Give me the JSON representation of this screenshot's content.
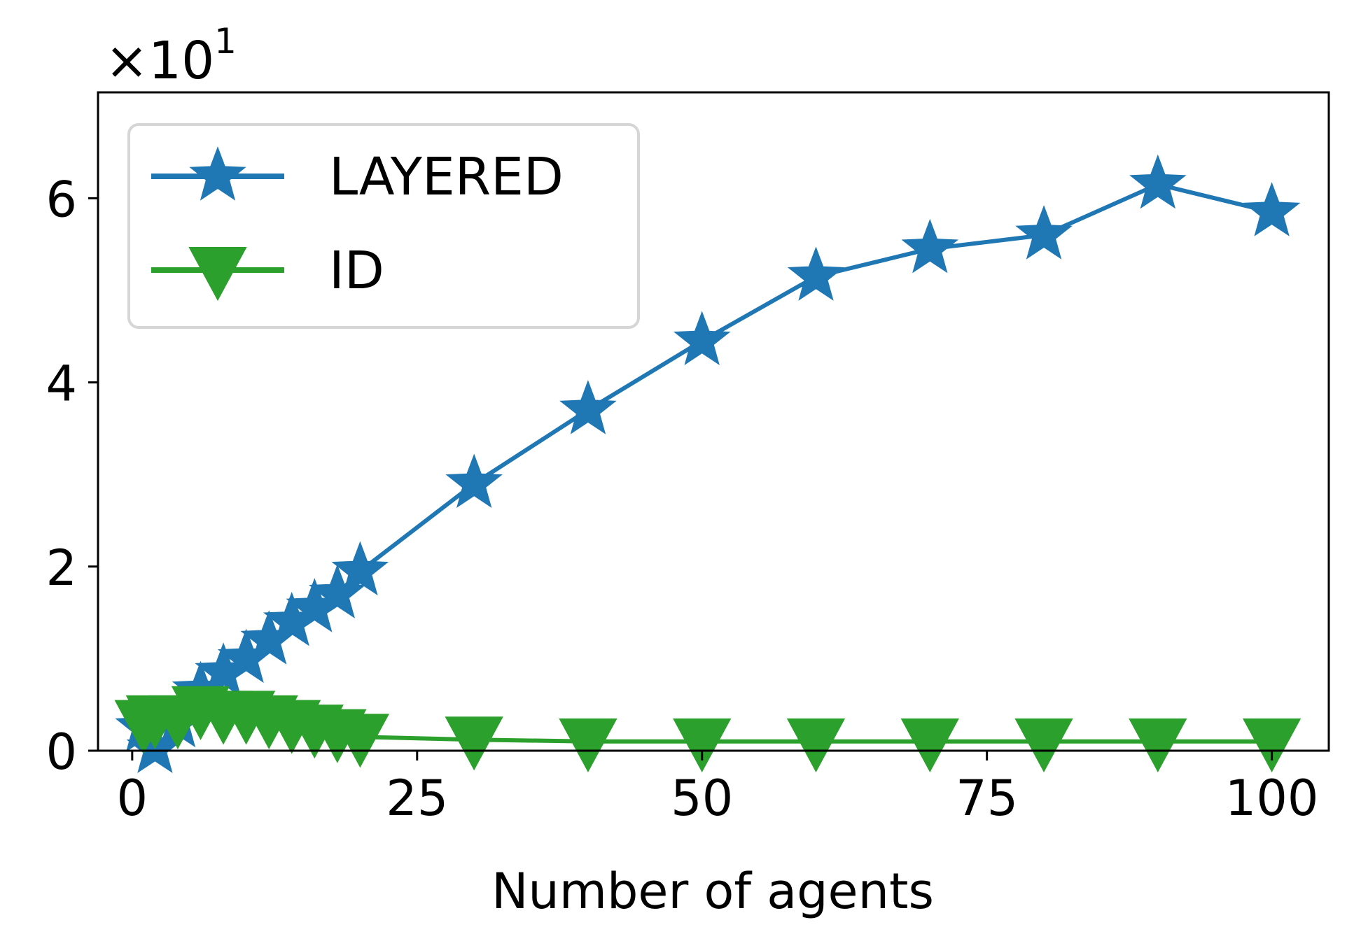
{
  "chart_data": {
    "type": "line",
    "xlabel": "Number of agents",
    "ylabel": "",
    "y_offset_label": "×10",
    "y_offset_exponent": "1",
    "xlim": [
      -3,
      105
    ],
    "ylim": [
      0,
      7.15
    ],
    "x_ticks": [
      0,
      25,
      50,
      75,
      100
    ],
    "y_ticks": [
      0,
      2,
      4,
      6
    ],
    "legend_position": "top-left",
    "grid": false,
    "series": [
      {
        "name": "LAYERED",
        "color": "#1f77b4",
        "marker": "star",
        "x": [
          1,
          2,
          4,
          6,
          8,
          10,
          12,
          14,
          16,
          18,
          20,
          30,
          40,
          50,
          60,
          70,
          80,
          90,
          100
        ],
        "y": [
          0.25,
          0.02,
          0.3,
          0.65,
          0.85,
          1.0,
          1.2,
          1.4,
          1.55,
          1.7,
          1.95,
          2.9,
          3.7,
          4.45,
          5.15,
          5.45,
          5.6,
          6.15,
          5.85
        ]
      },
      {
        "name": "ID",
        "color": "#2ca02c",
        "marker": "triangle-down",
        "x": [
          1,
          2,
          4,
          6,
          8,
          10,
          12,
          14,
          16,
          18,
          20,
          30,
          40,
          50,
          60,
          70,
          80,
          90,
          100
        ],
        "y": [
          0.3,
          0.35,
          0.35,
          0.45,
          0.4,
          0.4,
          0.35,
          0.3,
          0.25,
          0.2,
          0.15,
          0.12,
          0.1,
          0.1,
          0.1,
          0.1,
          0.1,
          0.1,
          0.1
        ]
      }
    ]
  }
}
